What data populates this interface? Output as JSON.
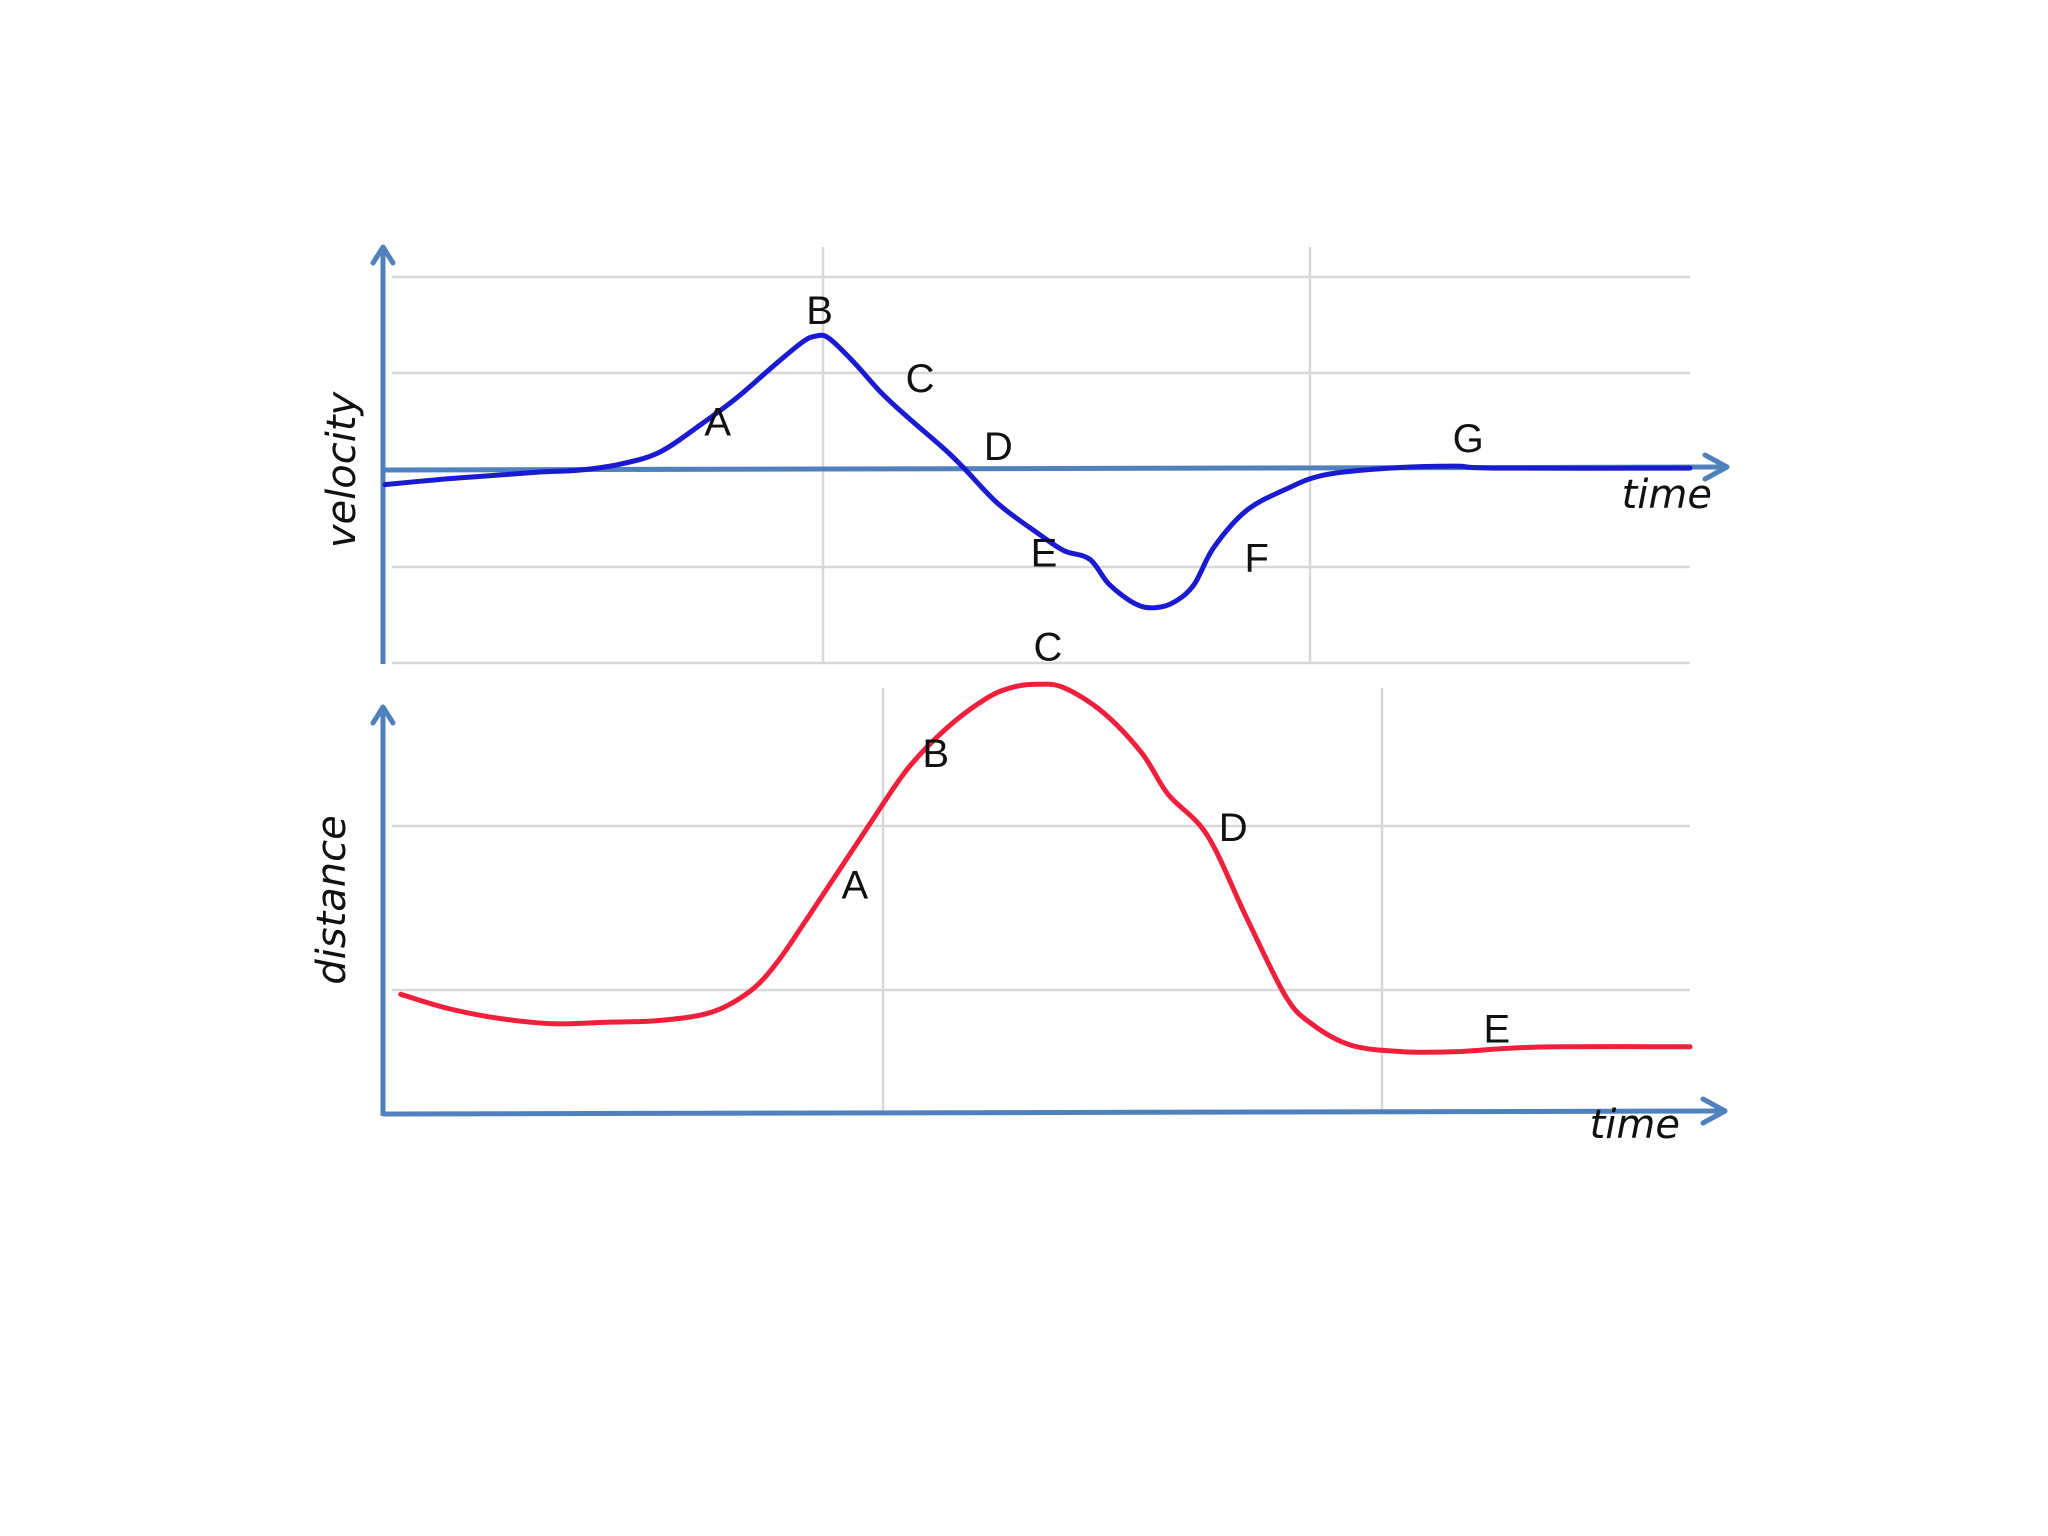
{
  "chart_data": [
    {
      "type": "line",
      "xlabel": "time",
      "ylabel": "velocity",
      "grid": true,
      "series": [
        {
          "color": "#1a1ad0",
          "points": [
            [
              0,
              -0.15
            ],
            [
              40,
              -0.1
            ],
            [
              80,
              -0.06
            ],
            [
              120,
              -0.02
            ],
            [
              150,
              0.0
            ],
            [
              180,
              0.06
            ],
            [
              210,
              0.18
            ],
            [
              240,
              0.45
            ],
            [
              270,
              0.75
            ],
            [
              300,
              1.1
            ],
            [
              320,
              1.32
            ],
            [
              330,
              1.38
            ],
            [
              340,
              1.36
            ],
            [
              360,
              1.1
            ],
            [
              380,
              0.8
            ],
            [
              400,
              0.55
            ],
            [
              430,
              0.2
            ],
            [
              445,
              0.0
            ],
            [
              470,
              -0.35
            ],
            [
              500,
              -0.65
            ],
            [
              520,
              -0.83
            ],
            [
              540,
              -0.92
            ],
            [
              555,
              -1.18
            ],
            [
              575,
              -1.38
            ],
            [
              590,
              -1.42
            ],
            [
              605,
              -1.36
            ],
            [
              620,
              -1.18
            ],
            [
              635,
              -0.8
            ],
            [
              660,
              -0.42
            ],
            [
              690,
              -0.2
            ],
            [
              720,
              -0.05
            ],
            [
              770,
              0.02
            ],
            [
              820,
              0.04
            ],
            [
              850,
              0.02
            ],
            [
              1000,
              0.02
            ]
          ]
        }
      ],
      "annotations": [
        {
          "text": "A",
          "x": 255,
          "y": 0.5
        },
        {
          "text": "B",
          "x": 333,
          "y": 1.65
        },
        {
          "text": "C",
          "x": 410,
          "y": 0.95
        },
        {
          "text": "D",
          "x": 470,
          "y": 0.25
        },
        {
          "text": "E",
          "x": 505,
          "y": -0.85
        },
        {
          "text": "F",
          "x": 668,
          "y": -0.9
        },
        {
          "text": "G",
          "x": 830,
          "y": 0.33
        }
      ]
    },
    {
      "type": "line",
      "xlabel": "time",
      "ylabel": "distance",
      "grid": true,
      "series": [
        {
          "color": "#f0203c",
          "points": [
            [
              12,
              0.73
            ],
            [
              50,
              0.64
            ],
            [
              90,
              0.58
            ],
            [
              130,
              0.55
            ],
            [
              170,
              0.56
            ],
            [
              210,
              0.57
            ],
            [
              250,
              0.62
            ],
            [
              280,
              0.75
            ],
            [
              300,
              0.92
            ],
            [
              320,
              1.15
            ],
            [
              345,
              1.45
            ],
            [
              370,
              1.75
            ],
            [
              400,
              2.1
            ],
            [
              430,
              2.35
            ],
            [
              460,
              2.53
            ],
            [
              480,
              2.6
            ],
            [
              500,
              2.62
            ],
            [
              520,
              2.6
            ],
            [
              550,
              2.45
            ],
            [
              580,
              2.2
            ],
            [
              600,
              1.95
            ],
            [
              630,
              1.7
            ],
            [
              660,
              1.2
            ],
            [
              690,
              0.72
            ],
            [
              710,
              0.55
            ],
            [
              740,
              0.42
            ],
            [
              780,
              0.38
            ],
            [
              820,
              0.38
            ],
            [
              860,
              0.4
            ],
            [
              900,
              0.41
            ],
            [
              1000,
              0.41
            ]
          ]
        }
      ],
      "annotations": [
        {
          "text": "A",
          "x": 360,
          "y": 1.4
        },
        {
          "text": "B",
          "x": 422,
          "y": 2.2
        },
        {
          "text": "C",
          "x": 508,
          "y": 2.85
        },
        {
          "text": "D",
          "x": 650,
          "y": 1.75
        },
        {
          "text": "E",
          "x": 852,
          "y": 0.52
        }
      ]
    }
  ]
}
